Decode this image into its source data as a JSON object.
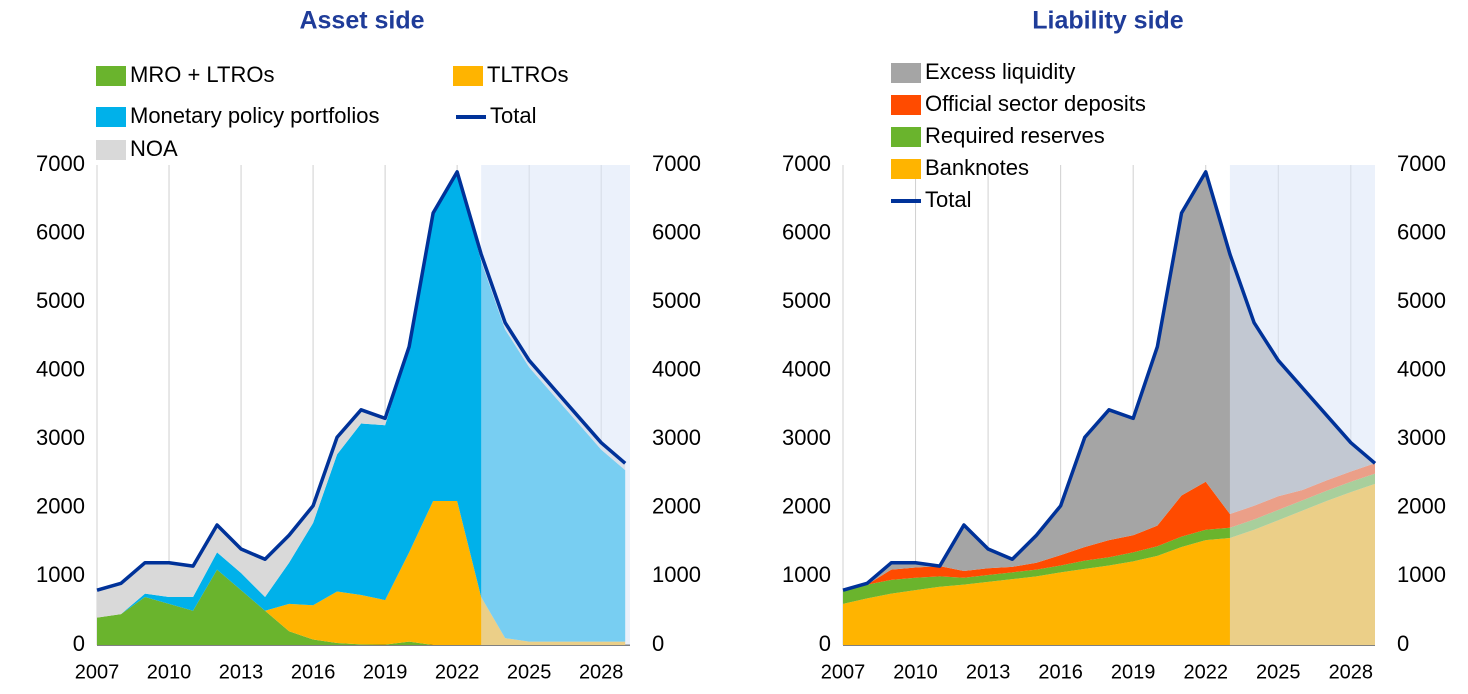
{
  "chart_data": [
    {
      "type": "area",
      "title": "Asset side",
      "x": [
        2007,
        2008,
        2009,
        2010,
        2011,
        2012,
        2013,
        2014,
        2015,
        2016,
        2017,
        2018,
        2019,
        2020,
        2021,
        2022,
        2023,
        2024,
        2025,
        2026,
        2027,
        2028,
        2029
      ],
      "series": [
        {
          "name": "MRO + LTROs",
          "color": "#6ab42d",
          "values": [
            400,
            450,
            700,
            600,
            500,
            1100,
            800,
            500,
            200,
            80,
            30,
            10,
            5,
            50,
            0,
            0,
            0,
            0,
            0,
            0,
            0,
            0,
            0
          ]
        },
        {
          "name": "TLTROs",
          "color": "#ffb400",
          "values": [
            0,
            0,
            0,
            0,
            0,
            0,
            0,
            0,
            400,
            500,
            750,
            720,
            650,
            1300,
            2100,
            2100,
            700,
            100,
            50,
            50,
            50,
            50,
            50
          ]
        },
        {
          "name": "Monetary policy portfolios",
          "color": "#00b1ea",
          "values": [
            0,
            0,
            50,
            100,
            200,
            250,
            250,
            200,
            600,
            1200,
            2000,
            2500,
            2550,
            3000,
            4200,
            4800,
            4900,
            4500,
            4000,
            3600,
            3200,
            2800,
            2500
          ]
        },
        {
          "name": "NOA",
          "color": "#d9d9d9",
          "values": [
            400,
            450,
            450,
            500,
            450,
            400,
            350,
            550,
            400,
            250,
            250,
            200,
            100,
            0,
            0,
            0,
            100,
            100,
            100,
            100,
            100,
            100,
            100
          ]
        },
        {
          "name": "Total",
          "color": "#003299",
          "style": "line",
          "values": [
            800,
            900,
            1200,
            1200,
            1150,
            1750,
            1400,
            1250,
            1600,
            2030,
            3030,
            3430,
            3305,
            4350,
            6300,
            6900,
            5700,
            4700,
            4150,
            3750,
            3350,
            2950,
            2650
          ]
        }
      ],
      "xlim": [
        2007,
        2029.2
      ],
      "xticks": [
        2007,
        2010,
        2013,
        2016,
        2019,
        2022,
        2025,
        2028
      ],
      "ylim": [
        0,
        7000
      ],
      "yticks": [
        0,
        1000,
        2000,
        3000,
        4000,
        5000,
        6000,
        7000
      ],
      "shaded_from": 2023,
      "grid": true
    },
    {
      "type": "area",
      "title": "Liability side",
      "x": [
        2007,
        2008,
        2009,
        2010,
        2011,
        2012,
        2013,
        2014,
        2015,
        2016,
        2017,
        2018,
        2019,
        2020,
        2021,
        2022,
        2023,
        2024,
        2025,
        2026,
        2027,
        2028,
        2029
      ],
      "series": [
        {
          "name": "Banknotes",
          "color": "#ffb400",
          "values": [
            600,
            680,
            750,
            800,
            850,
            880,
            920,
            960,
            1000,
            1060,
            1110,
            1160,
            1220,
            1300,
            1430,
            1530,
            1560,
            1680,
            1820,
            1960,
            2100,
            2230,
            2350
          ]
        },
        {
          "name": "Required reserves",
          "color": "#6ab42d",
          "values": [
            200,
            200,
            200,
            180,
            150,
            100,
            100,
            100,
            100,
            100,
            120,
            120,
            130,
            140,
            150,
            150,
            150,
            150,
            150,
            150,
            150,
            150,
            150
          ]
        },
        {
          "name": "Official sector deposits",
          "color": "#ff4b00",
          "values": [
            0,
            0,
            150,
            150,
            150,
            100,
            100,
            80,
            100,
            150,
            200,
            250,
            250,
            300,
            600,
            700,
            200,
            200,
            200,
            150,
            150,
            150,
            150
          ]
        },
        {
          "name": "Excess liquidity",
          "color": "#a5a5a5",
          "values": [
            0,
            20,
            100,
            70,
            0,
            670,
            280,
            110,
            400,
            720,
            1600,
            1900,
            1705,
            2610,
            4120,
            4520,
            3790,
            2670,
            1980,
            1490,
            950,
            420,
            0
          ]
        },
        {
          "name": "Total",
          "color": "#003299",
          "style": "line",
          "values": [
            800,
            900,
            1200,
            1200,
            1150,
            1750,
            1400,
            1250,
            1600,
            2030,
            3030,
            3430,
            3305,
            4350,
            6300,
            6900,
            5700,
            4700,
            4150,
            3750,
            3350,
            2950,
            2650
          ]
        }
      ],
      "xlim": [
        2007,
        2029
      ],
      "xticks": [
        2007,
        2010,
        2013,
        2016,
        2019,
        2022,
        2025,
        2028
      ],
      "ylim": [
        0,
        7000
      ],
      "yticks": [
        0,
        1000,
        2000,
        3000,
        4000,
        5000,
        6000,
        7000
      ],
      "shaded_from": 2023,
      "grid": true
    }
  ]
}
